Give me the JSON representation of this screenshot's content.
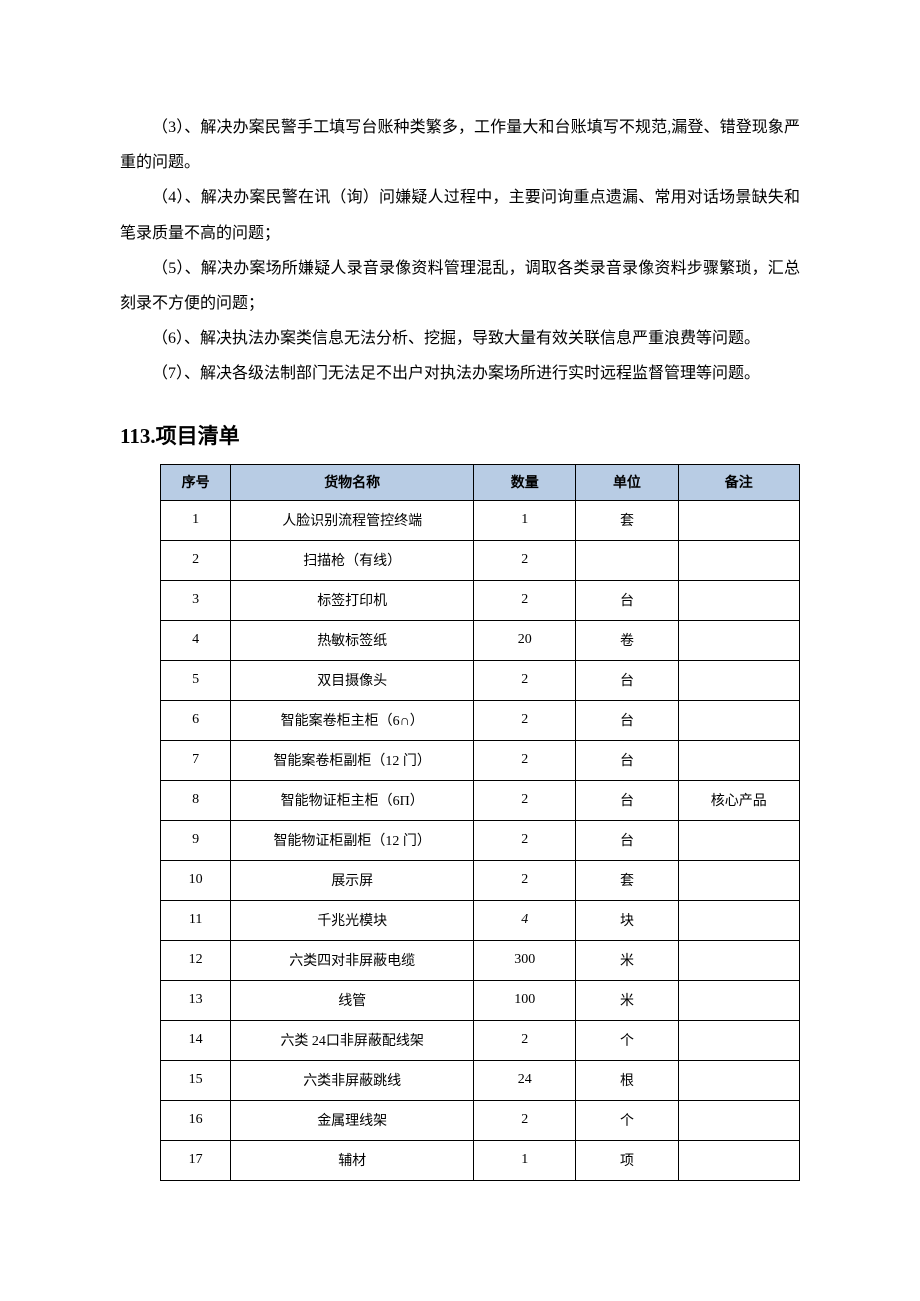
{
  "paragraphs": [
    "（3）、解决办案民警手工填写台账种类繁多，工作量大和台账填写不规范,漏登、错登现象严重的问题。",
    "（4）、解决办案民警在讯（询）问嫌疑人过程中，主要问询重点遗漏、常用对话场景缺失和笔录质量不高的问题；",
    "（5）、解决办案场所嫌疑人录音录像资料管理混乱，调取各类录音录像资料步骤繁琐，汇总刻录不方便的问题；",
    "（6）、解决执法办案类信息无法分析、挖掘，导致大量有效关联信息严重浪费等问题。",
    "（7）、解决各级法制部门无法足不出户对执法办案场所进行实时远程监督管理等问题。"
  ],
  "section_title": "113.项目清单",
  "table": {
    "header_bg": "#b8cce4",
    "border_color": "#000000",
    "columns": [
      {
        "key": "seq",
        "label": "序号",
        "width": "11%"
      },
      {
        "key": "name",
        "label": "货物名称",
        "width": "38%"
      },
      {
        "key": "qty",
        "label": "数量",
        "width": "16%"
      },
      {
        "key": "unit",
        "label": "单位",
        "width": "16%"
      },
      {
        "key": "note",
        "label": "备注",
        "width": "19%"
      }
    ],
    "rows": [
      {
        "seq": "1",
        "name": "人脸识别流程管控终端",
        "qty": "1",
        "unit": "套",
        "note": ""
      },
      {
        "seq": "2",
        "name": "扫描枪（有线）",
        "qty": "2",
        "unit": "",
        "note": ""
      },
      {
        "seq": "3",
        "name": "标签打印机",
        "qty": "2",
        "unit": "台",
        "note": ""
      },
      {
        "seq": "4",
        "name": "热敏标签纸",
        "qty": "20",
        "unit": "卷",
        "note": ""
      },
      {
        "seq": "5",
        "name": "双目摄像头",
        "qty": "2",
        "unit": "台",
        "note": ""
      },
      {
        "seq": "6",
        "name": "智能案卷柜主柜（6∩）",
        "qty": "2",
        "unit": "台",
        "note": ""
      },
      {
        "seq": "7",
        "name": "智能案卷柜副柜（12 门）",
        "qty": "2",
        "unit": "台",
        "note": ""
      },
      {
        "seq": "8",
        "name": "智能物证柜主柜（6Π）",
        "qty": "2",
        "unit": "台",
        "note": "核心产品"
      },
      {
        "seq": "9",
        "name": "智能物证柜副柜（12 门）",
        "qty": "2",
        "unit": "台",
        "note": ""
      },
      {
        "seq": "10",
        "name": "展示屏",
        "qty": "2",
        "unit": "套",
        "note": ""
      },
      {
        "seq": "11",
        "name": "千兆光模块",
        "qty": "4",
        "qty_italic": true,
        "unit": "块",
        "note": ""
      },
      {
        "seq": "12",
        "name": "六类四对非屏蔽电缆",
        "qty": "300",
        "unit": "米",
        "note": ""
      },
      {
        "seq": "13",
        "name": "线管",
        "qty": "100",
        "unit": "米",
        "note": ""
      },
      {
        "seq": "14",
        "name": "六类 24口非屏蔽配线架",
        "qty": "2",
        "unit": "个",
        "note": ""
      },
      {
        "seq": "15",
        "name": "六类非屏蔽跳线",
        "qty": "24",
        "unit": "根",
        "note": ""
      },
      {
        "seq": "16",
        "name": "金属理线架",
        "qty": "2",
        "unit": "个",
        "note": ""
      },
      {
        "seq": "17",
        "name": "辅材",
        "qty": "1",
        "unit": "项",
        "note": ""
      }
    ]
  }
}
